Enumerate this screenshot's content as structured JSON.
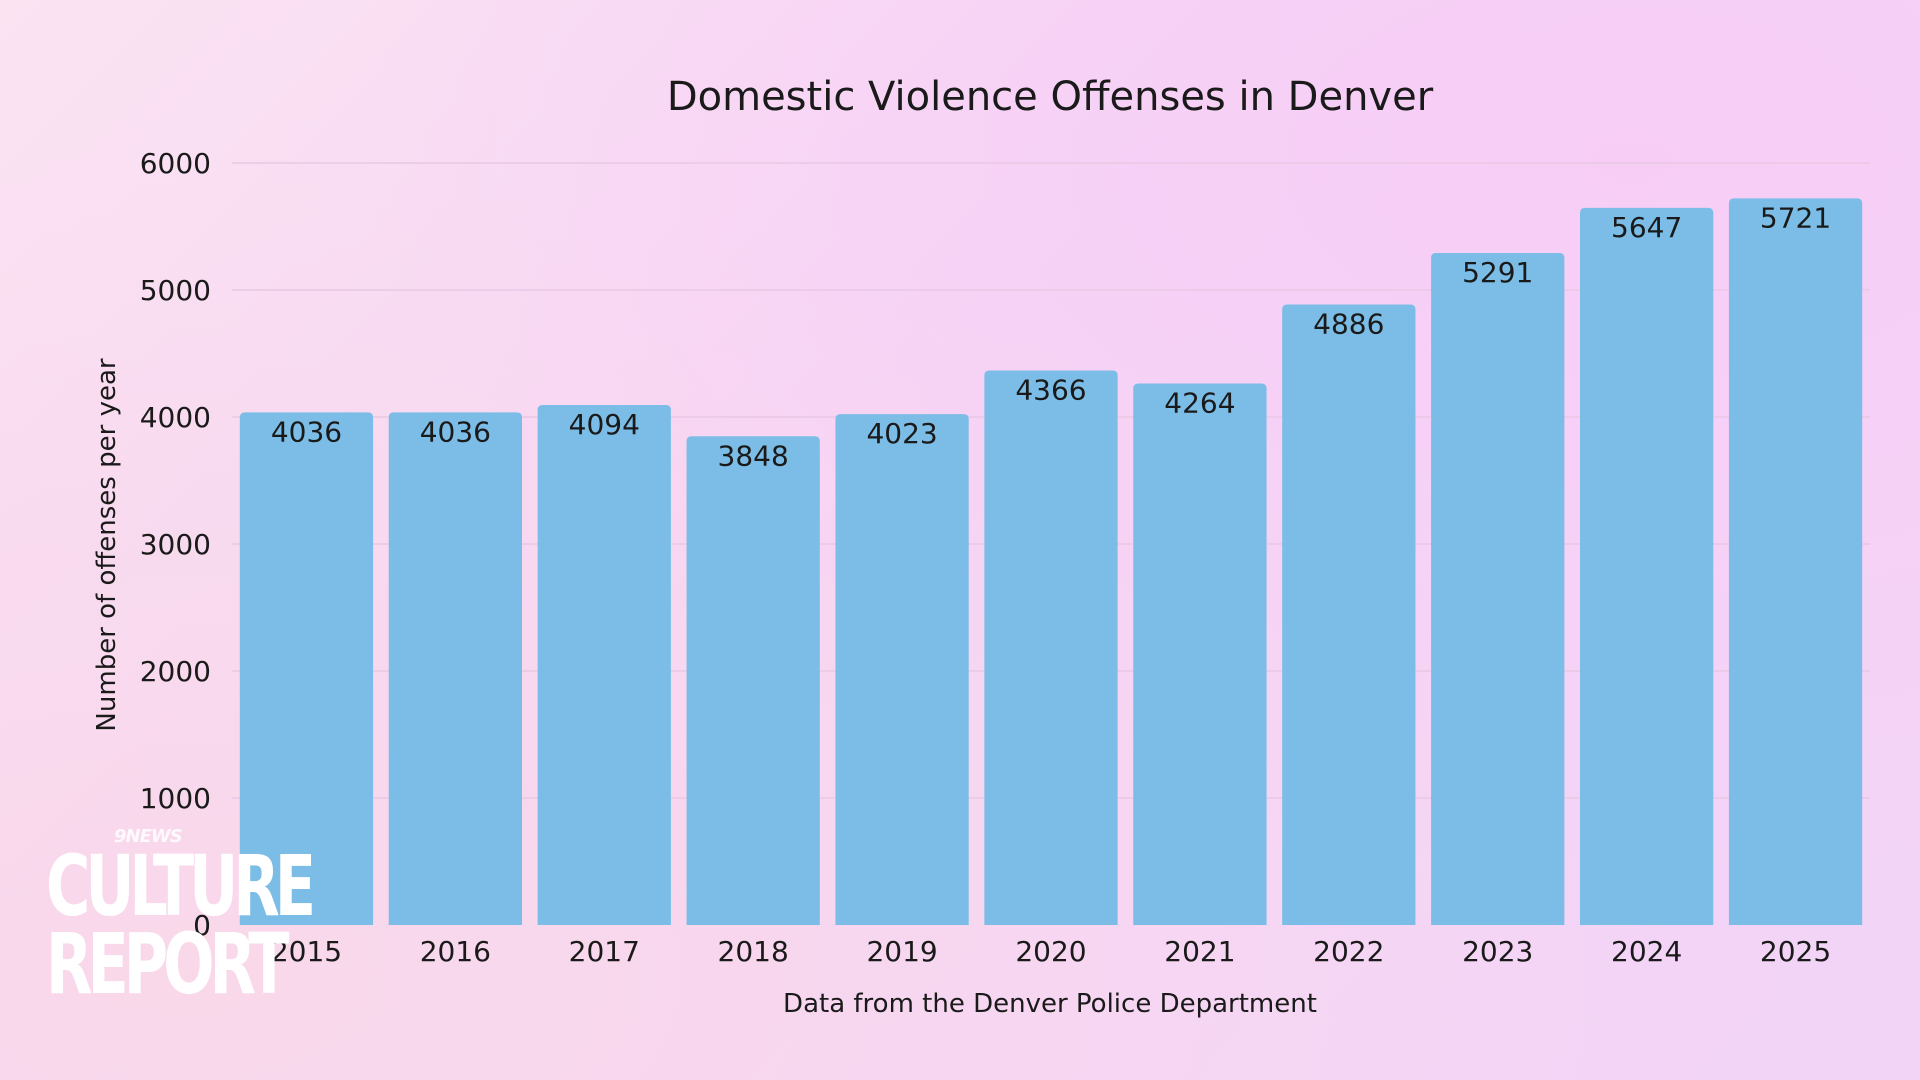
{
  "chart_data": {
    "type": "bar",
    "title": "Domestic Violence Offenses in Denver",
    "xlabel": "Data from the Denver Police Department",
    "ylabel": "Number of offenses per year",
    "categories": [
      "2015",
      "2016",
      "2017",
      "2018",
      "2019",
      "2020",
      "2021",
      "2022",
      "2023",
      "2024",
      "2025"
    ],
    "values": [
      4036,
      4036,
      4094,
      3848,
      4023,
      4366,
      4264,
      4886,
      5291,
      5647,
      5721
    ],
    "data_labels": [
      "4036",
      "4036",
      "4094",
      "3848",
      "4023",
      "4366",
      "4264",
      "4886",
      "5291",
      "5647",
      "5721"
    ],
    "ylim": [
      0,
      6000
    ],
    "yticks": [
      "0",
      "1000",
      "2000",
      "3000",
      "4000",
      "5000",
      "6000"
    ],
    "grid": true,
    "legend": "none",
    "bar_color": "#7bbde6",
    "grid_color": "#e8c8e4"
  },
  "logo": {
    "small": "9NEWS",
    "line1": "CULTURE",
    "line2": "REPORT"
  }
}
